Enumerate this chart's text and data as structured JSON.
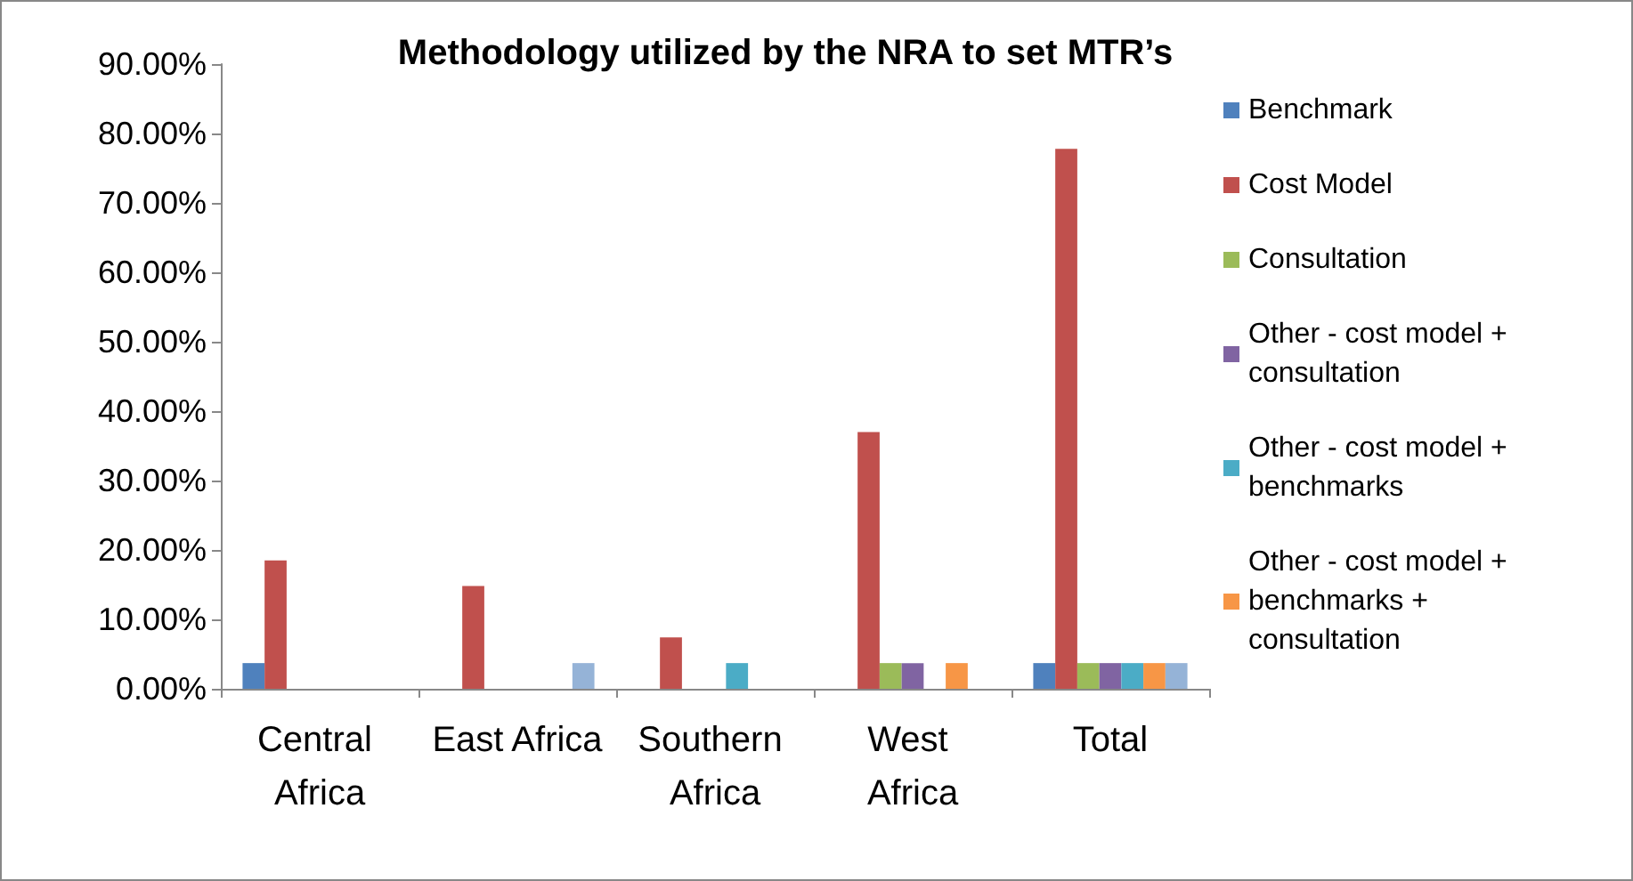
{
  "chart_data": {
    "type": "bar",
    "title": "Methodology utilized by the NRA to set MTR’s",
    "categories": [
      "Central Africa",
      "East Africa",
      "Southern Africa",
      "West Africa",
      "Total"
    ],
    "series": [
      {
        "name": "Benchmark",
        "color": "#4f81bd",
        "values": [
          3.7,
          null,
          null,
          null,
          3.7
        ]
      },
      {
        "name": "Cost Model",
        "color": "#c0504d",
        "values": [
          18.5,
          14.8,
          7.4,
          37,
          77.8
        ]
      },
      {
        "name": "Consultation",
        "color": "#9bbb59",
        "values": [
          null,
          null,
          null,
          3.7,
          3.7
        ]
      },
      {
        "name": "Other - cost model + consultation",
        "color": "#8064a2",
        "values": [
          null,
          null,
          null,
          3.7,
          3.7
        ]
      },
      {
        "name": "Other - cost model + benchmarks",
        "color": "#4bacc6",
        "values": [
          null,
          null,
          3.7,
          null,
          3.7
        ]
      },
      {
        "name": "Other - cost model + benchmarks + consultation",
        "color": "#f79646",
        "values": [
          null,
          null,
          null,
          3.7,
          3.7
        ]
      },
      {
        "color": "#95b3d7",
        "values": [
          null,
          3.7,
          null,
          null,
          3.7
        ]
      }
    ],
    "ylim": [
      0,
      90
    ],
    "yticks": [
      {
        "value": 0,
        "label": "0.00%"
      },
      {
        "value": 10,
        "label": "10.00%"
      },
      {
        "value": 20,
        "label": "20.00%"
      },
      {
        "value": 30,
        "label": "30.00%"
      },
      {
        "value": 40,
        "label": "40.00%"
      },
      {
        "value": 50,
        "label": "50.00%"
      },
      {
        "value": 60,
        "label": "60.00%"
      },
      {
        "value": 70,
        "label": "70.00%"
      },
      {
        "value": 80,
        "label": "80.00%"
      },
      {
        "value": 90,
        "label": "90.00%"
      }
    ],
    "grid": false,
    "legend": "right"
  }
}
